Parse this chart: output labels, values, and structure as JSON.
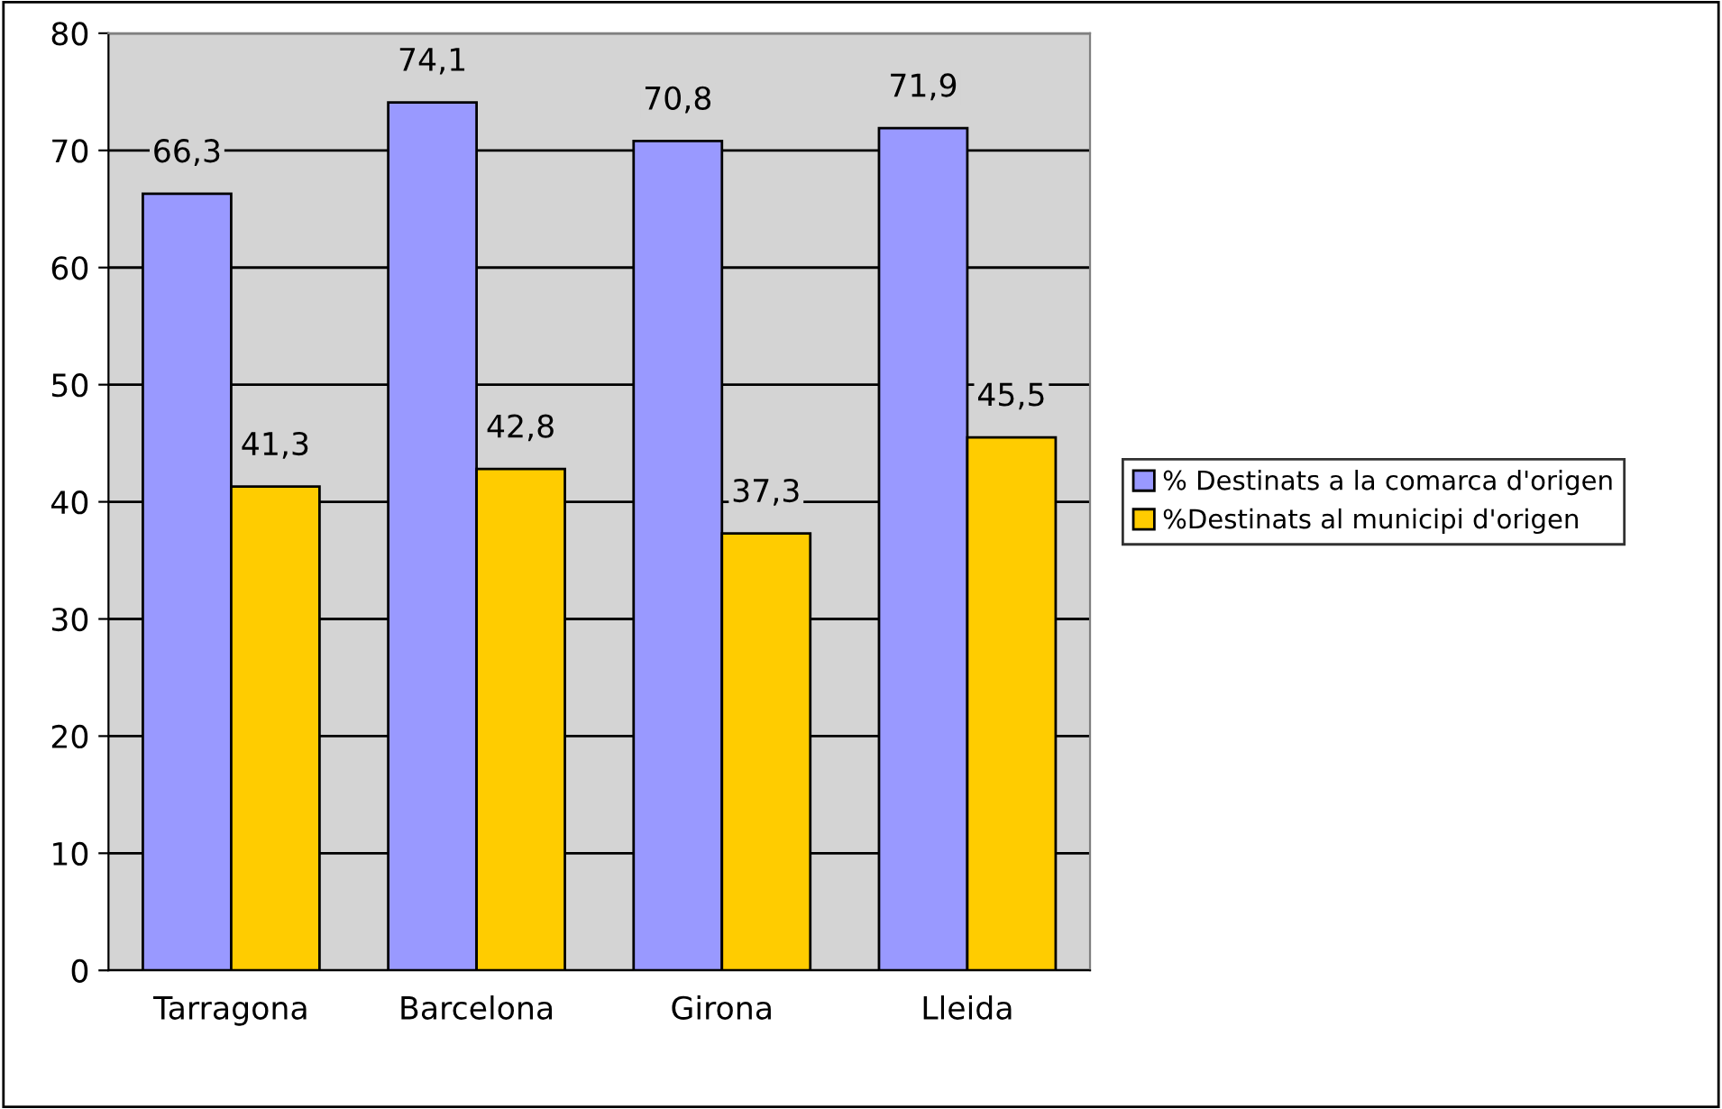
{
  "chart_data": {
    "type": "bar",
    "categories": [
      "Tarragona",
      "Barcelona",
      "Girona",
      "Lleida"
    ],
    "series": [
      {
        "name": "% Destinats a la comarca d'origen",
        "color": "#9999ff",
        "values": [
          66.3,
          74.1,
          70.8,
          71.9
        ],
        "value_labels": [
          "66,3",
          "74,1",
          "70,8",
          "71,9"
        ]
      },
      {
        "name": "%Destinats al municipi d'origen",
        "color": "#ffcc00",
        "values": [
          41.3,
          42.8,
          37.3,
          45.5
        ],
        "value_labels": [
          "41,3",
          "42,8",
          "37,3",
          "45,5"
        ]
      }
    ],
    "ylim": [
      0,
      80
    ],
    "yticks": [
      0,
      10,
      20,
      30,
      40,
      50,
      60,
      70,
      80
    ],
    "grid": "y",
    "legend": "right"
  }
}
